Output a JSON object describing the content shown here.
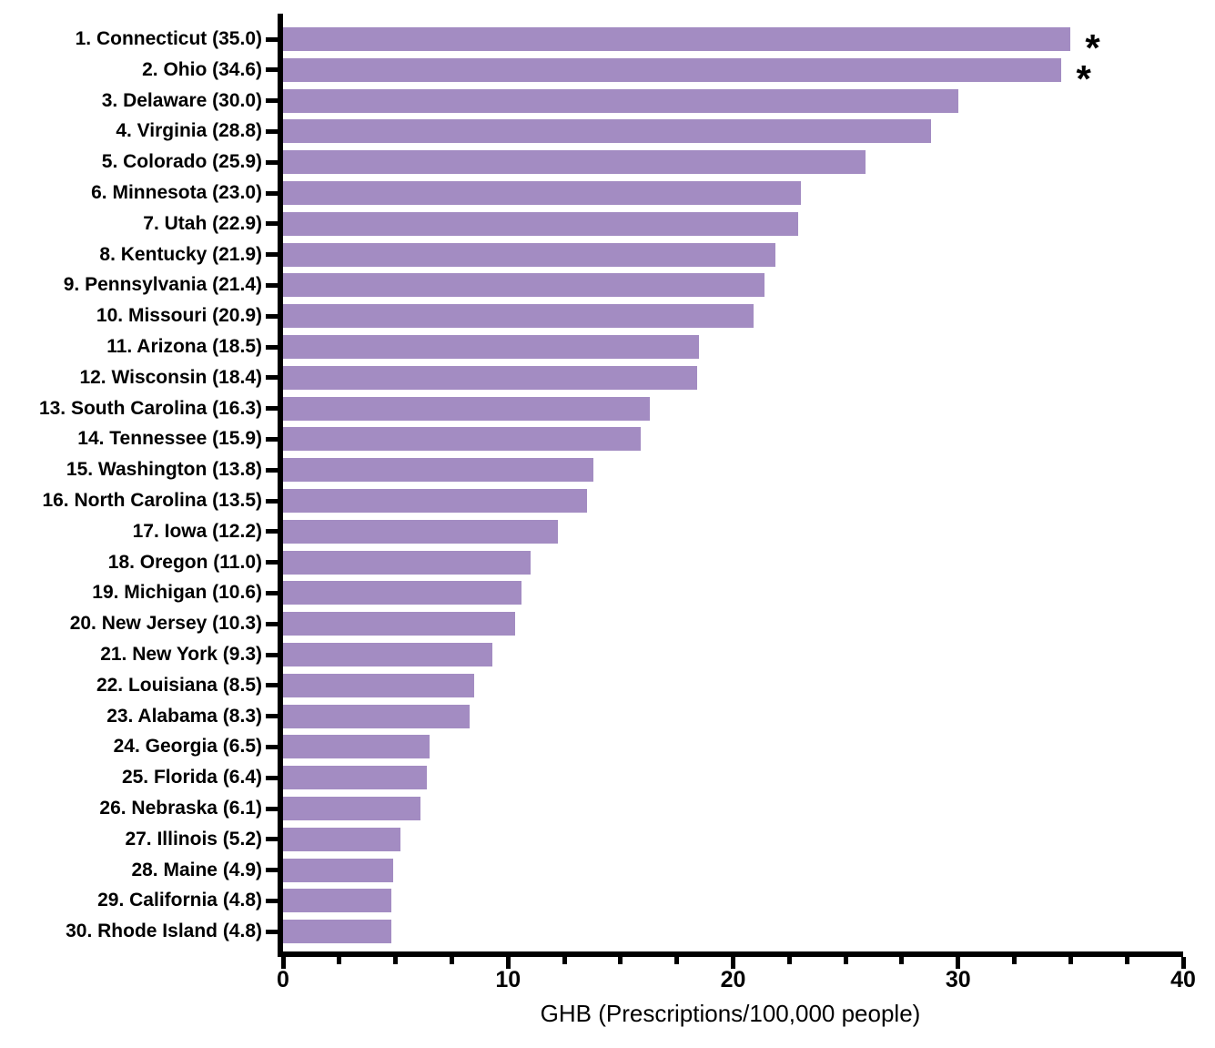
{
  "chart_data": {
    "type": "bar",
    "orientation": "horizontal",
    "title": "",
    "xlabel": "GHB (Prescriptions/100,000 people)",
    "ylabel": "",
    "xlim": [
      0,
      40
    ],
    "x_major_ticks": [
      0,
      10,
      20,
      30,
      40
    ],
    "x_minor_tick_interval": 2.5,
    "grid": false,
    "legend": "none",
    "bar_color": "#a38cc2",
    "axis_color": "#000000",
    "categories": [
      "1. Connecticut (35.0)",
      "2. Ohio (34.6)",
      "3. Delaware (30.0)",
      "4. Virginia (28.8)",
      "5. Colorado (25.9)",
      "6. Minnesota (23.0)",
      "7. Utah (22.9)",
      "8. Kentucky (21.9)",
      "9. Pennsylvania (21.4)",
      "10. Missouri (20.9)",
      "11. Arizona (18.5)",
      "12. Wisconsin (18.4)",
      "13. South Carolina (16.3)",
      "14. Tennessee (15.9)",
      "15. Washington (13.8)",
      "16. North Carolina (13.5)",
      "17. Iowa (12.2)",
      "18. Oregon (11.0)",
      "19. Michigan (10.6)",
      "20. New Jersey (10.3)",
      "21. New York (9.3)",
      "22. Louisiana (8.5)",
      "23. Alabama (8.3)",
      "24. Georgia (6.5)",
      "25. Florida (6.4)",
      "26. Nebraska (6.1)",
      "27. Illinois (5.2)",
      "28. Maine (4.9)",
      "29. California (4.8)",
      "30. Rhode Island (4.8)"
    ],
    "values": [
      35.0,
      34.6,
      30.0,
      28.8,
      25.9,
      23.0,
      22.9,
      21.9,
      21.4,
      20.9,
      18.5,
      18.4,
      16.3,
      15.9,
      13.8,
      13.5,
      12.2,
      11.0,
      10.6,
      10.3,
      9.3,
      8.5,
      8.3,
      6.5,
      6.4,
      6.1,
      5.2,
      4.9,
      4.8,
      4.8
    ],
    "annotations": [
      {
        "index": 0,
        "symbol": "*"
      },
      {
        "index": 1,
        "symbol": "*"
      }
    ]
  }
}
